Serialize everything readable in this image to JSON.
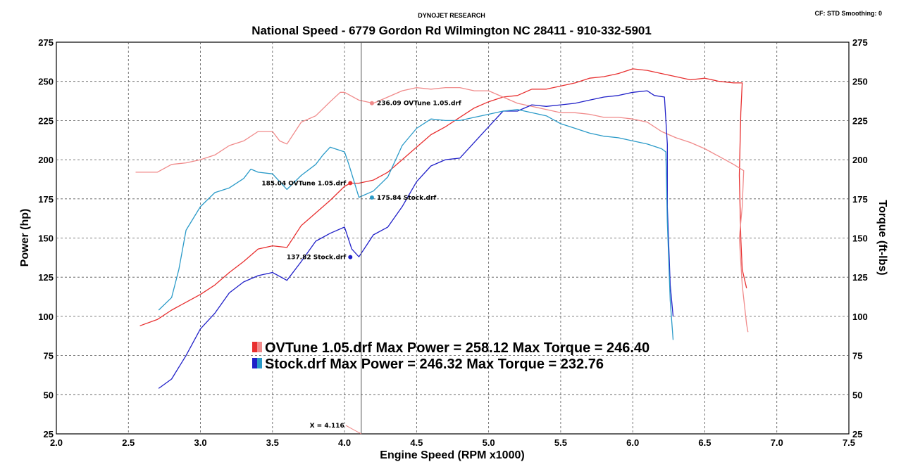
{
  "chart_data": {
    "type": "line",
    "header": "DYNOJET RESEARCH",
    "title": "National Speed - 6779 Gordon Rd Wilmington NC 28411 - 910-332-5901",
    "corner_info": "CF: STD  Smoothing: 0",
    "xlabel": "Engine Speed (RPM x1000)",
    "ylabel_left": "Power (hp)",
    "ylabel_right": "Torque (ft-lbs)",
    "xlim": [
      2.0,
      7.5
    ],
    "ylim": [
      25,
      275
    ],
    "x_ticks": [
      "2.0",
      "2.5",
      "3.0",
      "3.5",
      "4.0",
      "4.5",
      "5.0",
      "5.5",
      "6.0",
      "6.5",
      "7.0",
      "7.5"
    ],
    "y_ticks": [
      "25",
      "50",
      "75",
      "100",
      "125",
      "150",
      "175",
      "200",
      "225",
      "250",
      "275"
    ],
    "grid": true,
    "cursor": {
      "x": 4.116,
      "label": "X = 4.116"
    },
    "colors": {
      "ovtune_power": "#e83030",
      "ovtune_torque": "#f08a8a",
      "stock_power": "#2020c8",
      "stock_torque": "#2a9ac8",
      "cursor": "#555555",
      "grid": "#555555"
    },
    "series": [
      {
        "name": "OVTune 1.05.drf",
        "measure": "power",
        "color": "#e83030",
        "points": [
          [
            2.58,
            94
          ],
          [
            2.7,
            98
          ],
          [
            2.8,
            104
          ],
          [
            2.9,
            109
          ],
          [
            3.0,
            114
          ],
          [
            3.1,
            120
          ],
          [
            3.2,
            128
          ],
          [
            3.3,
            135
          ],
          [
            3.4,
            143
          ],
          [
            3.5,
            145
          ],
          [
            3.6,
            144
          ],
          [
            3.7,
            158
          ],
          [
            3.8,
            166
          ],
          [
            3.9,
            174
          ],
          [
            4.0,
            183
          ],
          [
            4.04,
            185
          ],
          [
            4.1,
            185
          ],
          [
            4.2,
            187
          ],
          [
            4.3,
            192
          ],
          [
            4.4,
            200
          ],
          [
            4.5,
            208
          ],
          [
            4.6,
            216
          ],
          [
            4.7,
            221
          ],
          [
            4.8,
            227
          ],
          [
            4.9,
            233
          ],
          [
            5.0,
            237
          ],
          [
            5.1,
            240
          ],
          [
            5.2,
            241
          ],
          [
            5.3,
            245
          ],
          [
            5.4,
            245
          ],
          [
            5.5,
            247
          ],
          [
            5.6,
            249
          ],
          [
            5.7,
            252
          ],
          [
            5.8,
            253
          ],
          [
            5.9,
            255
          ],
          [
            6.0,
            258
          ],
          [
            6.1,
            257
          ],
          [
            6.2,
            255
          ],
          [
            6.3,
            253
          ],
          [
            6.4,
            251
          ],
          [
            6.5,
            252
          ],
          [
            6.6,
            250
          ],
          [
            6.7,
            249
          ],
          [
            6.76,
            249
          ],
          [
            6.75,
            230
          ],
          [
            6.74,
            190
          ],
          [
            6.75,
            150
          ],
          [
            6.76,
            130
          ],
          [
            6.79,
            118
          ]
        ]
      },
      {
        "name": "OVTune 1.05.drf",
        "measure": "torque",
        "color": "#f08a8a",
        "points": [
          [
            2.55,
            192
          ],
          [
            2.7,
            192
          ],
          [
            2.8,
            197
          ],
          [
            2.9,
            198
          ],
          [
            3.0,
            200
          ],
          [
            3.1,
            203
          ],
          [
            3.2,
            209
          ],
          [
            3.3,
            212
          ],
          [
            3.4,
            218
          ],
          [
            3.5,
            218
          ],
          [
            3.55,
            212
          ],
          [
            3.6,
            210
          ],
          [
            3.7,
            224
          ],
          [
            3.8,
            228
          ],
          [
            3.9,
            237
          ],
          [
            3.97,
            243
          ],
          [
            4.0,
            243
          ],
          [
            4.1,
            238
          ],
          [
            4.2,
            236
          ],
          [
            4.3,
            240
          ],
          [
            4.4,
            244
          ],
          [
            4.5,
            246
          ],
          [
            4.6,
            245
          ],
          [
            4.7,
            246
          ],
          [
            4.8,
            246
          ],
          [
            4.9,
            244
          ],
          [
            5.0,
            244
          ],
          [
            5.1,
            240
          ],
          [
            5.2,
            236
          ],
          [
            5.3,
            234
          ],
          [
            5.4,
            232
          ],
          [
            5.5,
            230
          ],
          [
            5.6,
            230
          ],
          [
            5.7,
            229
          ],
          [
            5.8,
            227
          ],
          [
            5.9,
            227
          ],
          [
            6.0,
            226
          ],
          [
            6.1,
            224
          ],
          [
            6.2,
            218
          ],
          [
            6.3,
            214
          ],
          [
            6.4,
            211
          ],
          [
            6.5,
            207
          ],
          [
            6.6,
            202
          ],
          [
            6.7,
            197
          ],
          [
            6.77,
            193
          ],
          [
            6.76,
            170
          ],
          [
            6.74,
            150
          ],
          [
            6.76,
            120
          ],
          [
            6.79,
            95
          ],
          [
            6.8,
            90
          ]
        ]
      },
      {
        "name": "Stock.drf",
        "measure": "power",
        "color": "#2020c8",
        "points": [
          [
            2.71,
            54
          ],
          [
            2.8,
            60
          ],
          [
            2.9,
            75
          ],
          [
            3.0,
            92
          ],
          [
            3.1,
            102
          ],
          [
            3.2,
            115
          ],
          [
            3.3,
            122
          ],
          [
            3.4,
            126
          ],
          [
            3.5,
            128
          ],
          [
            3.6,
            123
          ],
          [
            3.7,
            135
          ],
          [
            3.8,
            148
          ],
          [
            3.9,
            153
          ],
          [
            4.0,
            157
          ],
          [
            4.05,
            143
          ],
          [
            4.1,
            138
          ],
          [
            4.15,
            145
          ],
          [
            4.2,
            152
          ],
          [
            4.3,
            157
          ],
          [
            4.4,
            170
          ],
          [
            4.5,
            186
          ],
          [
            4.6,
            196
          ],
          [
            4.7,
            200
          ],
          [
            4.8,
            201
          ],
          [
            4.9,
            211
          ],
          [
            5.0,
            221
          ],
          [
            5.1,
            231
          ],
          [
            5.2,
            231
          ],
          [
            5.3,
            235
          ],
          [
            5.4,
            234
          ],
          [
            5.5,
            235
          ],
          [
            5.6,
            236
          ],
          [
            5.7,
            238
          ],
          [
            5.8,
            240
          ],
          [
            5.9,
            241
          ],
          [
            6.0,
            243
          ],
          [
            6.1,
            244
          ],
          [
            6.15,
            241
          ],
          [
            6.22,
            240
          ],
          [
            6.24,
            210
          ],
          [
            6.24,
            170
          ],
          [
            6.26,
            120
          ],
          [
            6.28,
            100
          ]
        ]
      },
      {
        "name": "Stock.drf",
        "measure": "torque",
        "color": "#2a9ac8",
        "points": [
          [
            2.71,
            104
          ],
          [
            2.8,
            112
          ],
          [
            2.85,
            130
          ],
          [
            2.9,
            155
          ],
          [
            3.0,
            170
          ],
          [
            3.1,
            179
          ],
          [
            3.2,
            182
          ],
          [
            3.3,
            188
          ],
          [
            3.35,
            194
          ],
          [
            3.4,
            192
          ],
          [
            3.5,
            191
          ],
          [
            3.6,
            181
          ],
          [
            3.7,
            190
          ],
          [
            3.8,
            197
          ],
          [
            3.85,
            203
          ],
          [
            3.9,
            208
          ],
          [
            4.0,
            205
          ],
          [
            4.03,
            197
          ],
          [
            4.1,
            176
          ],
          [
            4.2,
            180
          ],
          [
            4.3,
            189
          ],
          [
            4.4,
            209
          ],
          [
            4.5,
            220
          ],
          [
            4.6,
            226
          ],
          [
            4.7,
            225
          ],
          [
            4.8,
            225
          ],
          [
            4.9,
            227
          ],
          [
            5.0,
            229
          ],
          [
            5.1,
            231
          ],
          [
            5.2,
            232
          ],
          [
            5.3,
            230
          ],
          [
            5.4,
            228
          ],
          [
            5.5,
            223
          ],
          [
            5.6,
            220
          ],
          [
            5.7,
            217
          ],
          [
            5.8,
            215
          ],
          [
            5.9,
            214
          ],
          [
            6.0,
            212
          ],
          [
            6.1,
            210
          ],
          [
            6.2,
            207
          ],
          [
            6.23,
            205
          ],
          [
            6.24,
            160
          ],
          [
            6.26,
            110
          ],
          [
            6.28,
            85
          ]
        ]
      }
    ],
    "annotations": [
      {
        "text": "236.09 OVTune 1.05.drf",
        "x": 4.19,
        "y": 236.09,
        "color": "#f08a8a",
        "side": "right"
      },
      {
        "text": "185.04 OVTune 1.05.drf",
        "x": 4.04,
        "y": 185.04,
        "color": "#e83030",
        "side": "left"
      },
      {
        "text": "175.84 Stock.drf",
        "x": 4.19,
        "y": 175.84,
        "color": "#2a9ac8",
        "side": "right"
      },
      {
        "text": "137.82 Stock.drf",
        "x": 4.04,
        "y": 137.82,
        "color": "#2020c8",
        "side": "left"
      }
    ],
    "legend": [
      {
        "text": "OVTune 1.05.drf Max Power = 258.12     Max Torque = 246.40",
        "color_a": "#e83030",
        "color_b": "#f08a8a"
      },
      {
        "text": "Stock.drf Max Power = 246.32     Max Torque = 232.76",
        "color_a": "#2020c8",
        "color_b": "#2a9ac8"
      }
    ]
  }
}
